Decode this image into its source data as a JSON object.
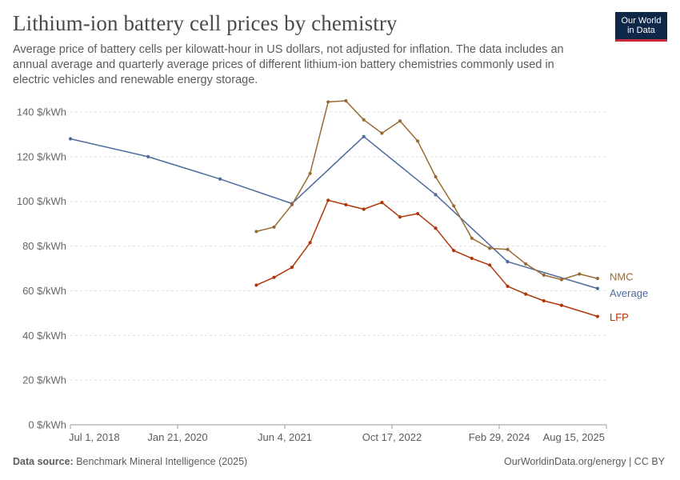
{
  "header": {
    "title": "Lithium-ion battery cell prices by chemistry",
    "subtitle": "Average price of battery cells per kilowatt-hour in US dollars, not adjusted for inflation. The data includes an annual average and quarterly average prices of different lithium-ion battery chemistries commonly used in electric vehicles and renewable energy storage.",
    "logo_line1": "Our World",
    "logo_line2": "in Data"
  },
  "footer": {
    "source_label": "Data source:",
    "source_text": "Benchmark Mineral Intelligence (2025)",
    "credit": "OurWorldinData.org/energy | CC BY"
  },
  "colors": {
    "Average": "#4c6a9c",
    "NMC": "#9a6a34",
    "LFP": "#b13507",
    "grid": "#dddddd",
    "axis": "#999999"
  },
  "chart_data": {
    "type": "line",
    "title": "Lithium-ion battery cell prices by chemistry",
    "xlabel": "",
    "ylabel": "",
    "x_ticks": [
      "Jul 1, 2018",
      "Jan 21, 2020",
      "Jun 4, 2021",
      "Oct 17, 2022",
      "Feb 29, 2024",
      "Aug 15, 2025"
    ],
    "y_ticks": [
      "0 $/kWh",
      "20 $/kWh",
      "40 $/kWh",
      "60 $/kWh",
      "80 $/kWh",
      "100 $/kWh",
      "120 $/kWh",
      "140 $/kWh"
    ],
    "ylim": [
      0,
      140
    ],
    "xlim": [
      "2018-06-01",
      "2025-11-15"
    ],
    "grid": true,
    "legend": "line-end labels",
    "series": [
      {
        "name": "Average",
        "points": [
          [
            "2018-06-01",
            128
          ],
          [
            "2019-07-01",
            120
          ],
          [
            "2020-07-01",
            110
          ],
          [
            "2021-07-01",
            99
          ],
          [
            "2022-07-01",
            129
          ],
          [
            "2023-07-01",
            103
          ],
          [
            "2024-07-01",
            73
          ],
          [
            "2025-10-01",
            61
          ]
        ]
      },
      {
        "name": "NMC",
        "points": [
          [
            "2021-01-01",
            86.5
          ],
          [
            "2021-04-01",
            88.5
          ],
          [
            "2021-07-01",
            98.5
          ],
          [
            "2021-10-01",
            112.5
          ],
          [
            "2022-01-01",
            144.5
          ],
          [
            "2022-04-01",
            145
          ],
          [
            "2022-07-01",
            136.5
          ],
          [
            "2022-10-01",
            130.5
          ],
          [
            "2023-01-01",
            136
          ],
          [
            "2023-04-01",
            127
          ],
          [
            "2023-07-01",
            111
          ],
          [
            "2023-10-01",
            98
          ],
          [
            "2024-01-01",
            83.5
          ],
          [
            "2024-04-01",
            79
          ],
          [
            "2024-07-01",
            78.5
          ],
          [
            "2024-10-01",
            72
          ],
          [
            "2025-01-01",
            67
          ],
          [
            "2025-04-01",
            65
          ],
          [
            "2025-07-01",
            67.5
          ],
          [
            "2025-10-01",
            65.5
          ]
        ]
      },
      {
        "name": "LFP",
        "points": [
          [
            "2021-01-01",
            62.5
          ],
          [
            "2021-04-01",
            66
          ],
          [
            "2021-07-01",
            70.5
          ],
          [
            "2021-10-01",
            81.5
          ],
          [
            "2022-01-01",
            100.5
          ],
          [
            "2022-04-01",
            98.5
          ],
          [
            "2022-07-01",
            96.5
          ],
          [
            "2022-10-01",
            99.5
          ],
          [
            "2023-01-01",
            93
          ],
          [
            "2023-04-01",
            94.5
          ],
          [
            "2023-07-01",
            88
          ],
          [
            "2023-10-01",
            78
          ],
          [
            "2024-01-01",
            74.5
          ],
          [
            "2024-04-01",
            71.5
          ],
          [
            "2024-07-01",
            62
          ],
          [
            "2024-10-01",
            58.5
          ],
          [
            "2025-01-01",
            55.5
          ],
          [
            "2025-04-01",
            53.5
          ],
          [
            "2025-10-01",
            48.5
          ]
        ]
      }
    ]
  }
}
